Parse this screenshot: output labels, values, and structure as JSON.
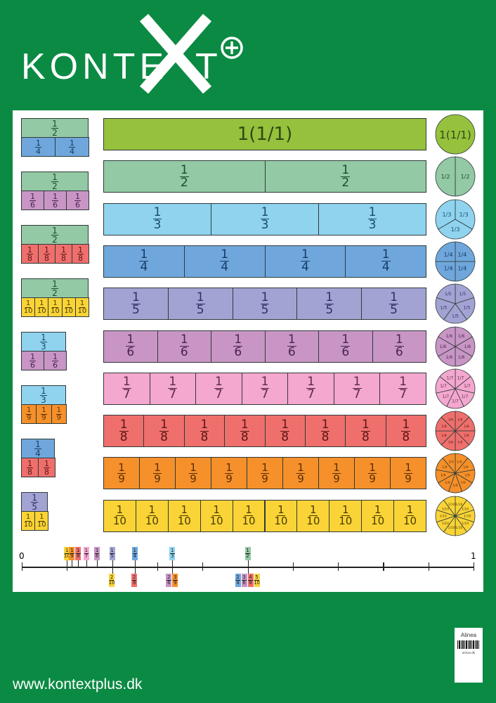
{
  "logo": {
    "text_left": "KONTE",
    "x": "X",
    "text_right": "T",
    "plus": "+"
  },
  "colors": {
    "background": "#0b8a43",
    "1": "#95c13d",
    "2": "#93c9a4",
    "3": "#8fd3ef",
    "4": "#6fa7dc",
    "5": "#a3a3d3",
    "6": "#c895c5",
    "7": "#f4a7cf",
    "8": "#ef6f6c",
    "9": "#f5902a",
    "10": "#fad436"
  },
  "text_colors": {
    "1": "#2f4a12",
    "2": "#1e4a30",
    "3": "#1b4a66",
    "4": "#163a66",
    "5": "#2e2e66",
    "6": "#4a2450",
    "7": "#5a2a48",
    "8": "#5a1616",
    "9": "#5a2e06",
    "10": "#4a3a06"
  },
  "whole_label": "1(1/1)",
  "bars": [
    1,
    2,
    3,
    4,
    5,
    6,
    7,
    8,
    9,
    10
  ],
  "comparisons": [
    {
      "top": 2,
      "bottom": 4
    },
    {
      "top": 2,
      "bottom": 6
    },
    {
      "top": 2,
      "bottom": 8
    },
    {
      "top": 2,
      "bottom": 10
    },
    {
      "top": 3,
      "bottom": 6
    },
    {
      "top": 3,
      "bottom": 9
    },
    {
      "top": 4,
      "bottom": 8
    },
    {
      "top": 5,
      "bottom": 10
    }
  ],
  "number_line": {
    "start_label": "0",
    "end_label": "1",
    "above": [
      {
        "n": 1,
        "d": 10
      },
      {
        "n": 1,
        "d": 9
      },
      {
        "n": 1,
        "d": 8
      },
      {
        "n": 1,
        "d": 7
      },
      {
        "n": 1,
        "d": 6
      },
      {
        "n": 1,
        "d": 5
      },
      {
        "n": 1,
        "d": 4
      },
      {
        "n": 1,
        "d": 3
      },
      {
        "n": 1,
        "d": 2
      }
    ],
    "below": [
      [
        {
          "n": 2,
          "d": 10
        }
      ],
      [
        {
          "n": 2,
          "d": 8
        }
      ],
      [
        {
          "n": 2,
          "d": 6
        },
        {
          "n": 3,
          "d": 9
        }
      ],
      [
        {
          "n": 2,
          "d": 4
        },
        {
          "n": 3,
          "d": 6
        },
        {
          "n": 4,
          "d": 8
        },
        {
          "n": 5,
          "d": 10
        }
      ]
    ]
  },
  "url": "www.kontextplus.dk",
  "label": {
    "brand": "Alinea",
    "site": "alinea.dk"
  }
}
